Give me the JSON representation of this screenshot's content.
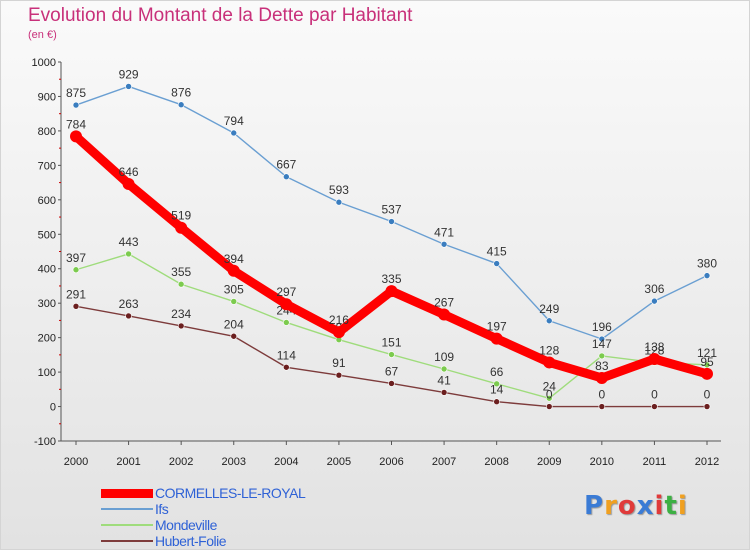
{
  "header": {
    "title": "Evolution du Montant de la Dette par Habitant",
    "subtitle": "(en €)"
  },
  "logo": {
    "text": "Proxiti",
    "colors": [
      "#3a7bd5",
      "#f0a020",
      "#e03a3a",
      "#3a7bd5",
      "#e03a3a",
      "#3cb043",
      "#f0a020"
    ]
  },
  "chart_data": {
    "type": "line",
    "title": "Evolution du Montant de la Dette par Habitant",
    "subtitle": "(en €)",
    "xlabel": "",
    "ylabel": "",
    "x": [
      2000,
      2001,
      2002,
      2003,
      2004,
      2005,
      2006,
      2007,
      2008,
      2009,
      2010,
      2011,
      2012
    ],
    "ylim": [
      -100,
      1000
    ],
    "yticks": [
      -100,
      0,
      100,
      200,
      300,
      400,
      500,
      600,
      700,
      800,
      900,
      1000
    ],
    "grid": false,
    "legend_position": "bottom-left",
    "series": [
      {
        "name": "Ifs",
        "color": "#6a9fd2",
        "marker": "#3a7dbf",
        "values": [
          875,
          929,
          876,
          794,
          667,
          593,
          537,
          471,
          415,
          249,
          196,
          306,
          380
        ]
      },
      {
        "name": "Mondeville",
        "color": "#9fdc7c",
        "marker": "#7ccb4e",
        "values": [
          397,
          443,
          355,
          305,
          244,
          194,
          151,
          109,
          66,
          24,
          147,
          128,
          121
        ]
      },
      {
        "name": "Hubert-Folie",
        "color": "#7d3b3b",
        "marker": "#6b1f1f",
        "values": [
          291,
          263,
          234,
          204,
          114,
          91,
          67,
          41,
          14,
          0,
          0,
          0,
          0
        ]
      },
      {
        "name": "CORMELLES-LE-ROYAL",
        "color": "#ff0000",
        "marker": "#ff0000",
        "thick": true,
        "values": [
          784,
          646,
          519,
          394,
          297,
          216,
          335,
          267,
          197,
          128,
          83,
          138,
          95
        ]
      }
    ],
    "legend_order": [
      "CORMELLES-LE-ROYAL",
      "Ifs",
      "Mondeville",
      "Hubert-Folie"
    ]
  }
}
